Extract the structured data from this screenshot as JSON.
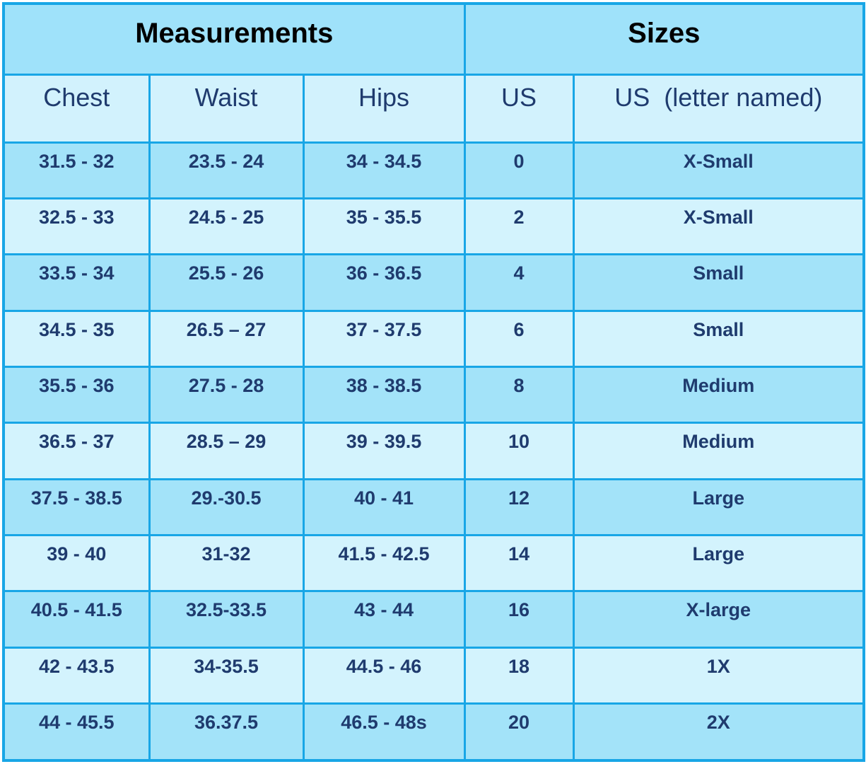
{
  "table": {
    "group_headers": [
      "Measurements",
      "Sizes"
    ],
    "column_headers": [
      "Chest",
      "Waist",
      "Hips",
      "US",
      "US  (letter named)"
    ],
    "rows": [
      [
        "31.5 - 32",
        "23.5 - 24",
        "34 - 34.5",
        "0",
        "X-Small"
      ],
      [
        "32.5 - 33",
        "24.5 - 25",
        "35 - 35.5",
        "2",
        "X-Small"
      ],
      [
        "33.5 - 34",
        "25.5 - 26",
        "36 - 36.5",
        "4",
        "Small"
      ],
      [
        "34.5 - 35",
        "26.5 – 27",
        "37 - 37.5",
        "6",
        "Small"
      ],
      [
        "35.5 - 36",
        "27.5 - 28",
        "38 - 38.5",
        "8",
        "Medium"
      ],
      [
        "36.5 - 37",
        "28.5 – 29",
        "39 - 39.5",
        "10",
        "Medium"
      ],
      [
        "37.5 - 38.5",
        "29.-30.5",
        "40 - 41",
        "12",
        "Large"
      ],
      [
        "39 - 40",
        "31-32",
        "41.5 - 42.5",
        "14",
        "Large"
      ],
      [
        "40.5 - 41.5",
        "32.5-33.5",
        "43 - 44",
        "16",
        "X-large"
      ],
      [
        "42 - 43.5",
        "34-35.5",
        "44.5 - 46",
        "18",
        "1X"
      ],
      [
        "44 - 45.5",
        "36.37.5",
        "46.5 - 48s",
        "20",
        "2X"
      ]
    ]
  },
  "colors": {
    "border": "#18a6e6",
    "header_bg": "#9fe2fa",
    "row_dark": "#a3e3f9",
    "row_light": "#d3f3fd",
    "text": "#1f3b6e"
  }
}
